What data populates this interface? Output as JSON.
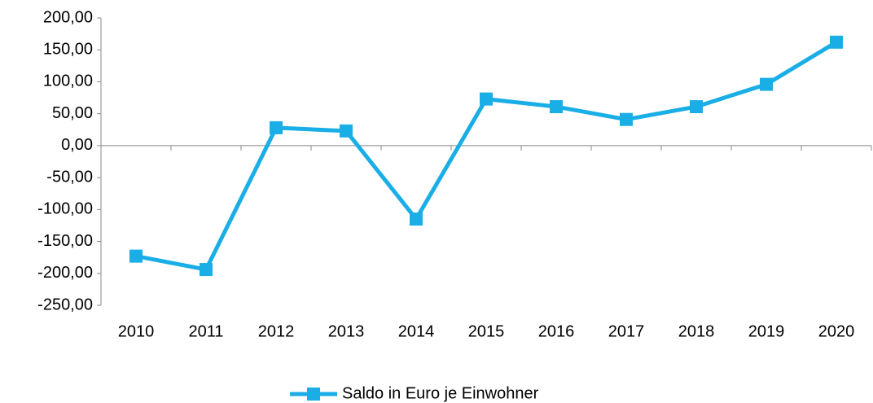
{
  "chart_data": {
    "type": "line",
    "categories": [
      "2010",
      "2011",
      "2012",
      "2013",
      "2014",
      "2015",
      "2016",
      "2017",
      "2018",
      "2019",
      "2020"
    ],
    "series": [
      {
        "name": "Saldo in Euro je Einwohner",
        "color": "#1aaee6",
        "values": [
          -173,
          -194,
          28,
          23,
          -115,
          73,
          61,
          41,
          61,
          96,
          162
        ]
      }
    ],
    "ylim": [
      -250,
      200
    ],
    "yticks": [
      {
        "value": -250,
        "label": "-250,00"
      },
      {
        "value": -200,
        "label": "-200,00"
      },
      {
        "value": -150,
        "label": "-150,00"
      },
      {
        "value": -100,
        "label": "-100,00"
      },
      {
        "value": -50,
        "label": "-50,00"
      },
      {
        "value": 0,
        "label": "0,00"
      },
      {
        "value": 50,
        "label": "50,00"
      },
      {
        "value": 100,
        "label": "100,00"
      },
      {
        "value": 150,
        "label": "150,00"
      },
      {
        "value": 200,
        "label": "200,00"
      }
    ],
    "grid": false,
    "legend": "bottom"
  }
}
